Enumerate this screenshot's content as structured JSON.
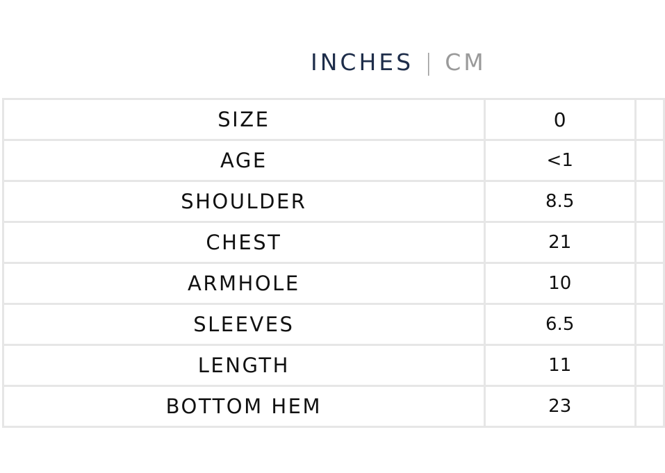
{
  "units": {
    "inches": "INCHES",
    "separator": "|",
    "cm": "CM",
    "active": "inches"
  },
  "table": {
    "rows": [
      {
        "label": "SIZE",
        "value": "0"
      },
      {
        "label": "AGE",
        "value": "<1"
      },
      {
        "label": "SHOULDER",
        "value": "8.5"
      },
      {
        "label": "CHEST",
        "value": "21"
      },
      {
        "label": "ARMHOLE",
        "value": "10"
      },
      {
        "label": "SLEEVES",
        "value": "6.5"
      },
      {
        "label": "LENGTH",
        "value": "11"
      },
      {
        "label": "BOTTOM HEM",
        "value": "23"
      }
    ]
  }
}
